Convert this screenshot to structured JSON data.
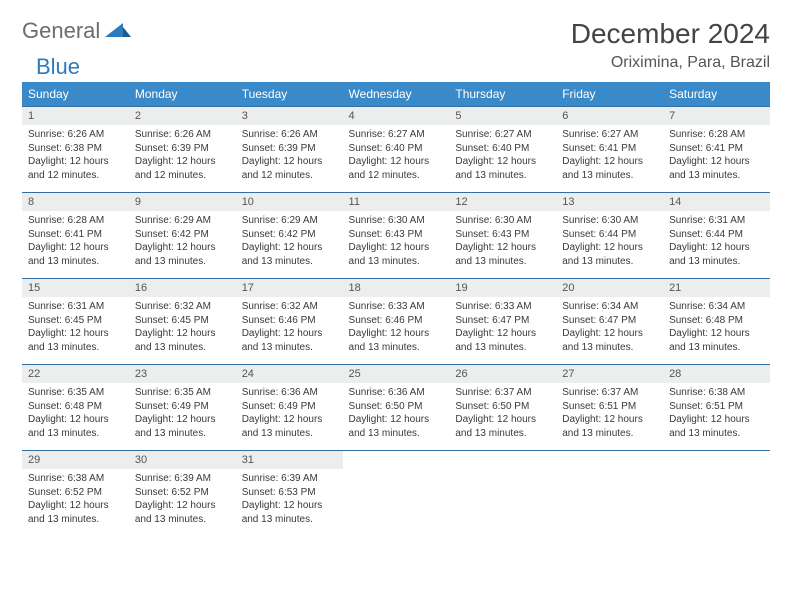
{
  "logo": {
    "part1": "General",
    "part2": "Blue"
  },
  "title": "December 2024",
  "location": "Oriximina, Para, Brazil",
  "colors": {
    "header_bg": "#3a8ac9",
    "header_text": "#ffffff",
    "daynum_bg": "#eceded",
    "row_divider": "#2f6fa3",
    "logo_gray": "#6d6d6d",
    "logo_blue": "#2b7bbf",
    "text": "#3a3a3a",
    "background": "#ffffff"
  },
  "weekdays": [
    "Sunday",
    "Monday",
    "Tuesday",
    "Wednesday",
    "Thursday",
    "Friday",
    "Saturday"
  ],
  "days": [
    {
      "n": 1,
      "sunrise": "6:26 AM",
      "sunset": "6:38 PM",
      "daylight": "12 hours and 12 minutes."
    },
    {
      "n": 2,
      "sunrise": "6:26 AM",
      "sunset": "6:39 PM",
      "daylight": "12 hours and 12 minutes."
    },
    {
      "n": 3,
      "sunrise": "6:26 AM",
      "sunset": "6:39 PM",
      "daylight": "12 hours and 12 minutes."
    },
    {
      "n": 4,
      "sunrise": "6:27 AM",
      "sunset": "6:40 PM",
      "daylight": "12 hours and 12 minutes."
    },
    {
      "n": 5,
      "sunrise": "6:27 AM",
      "sunset": "6:40 PM",
      "daylight": "12 hours and 13 minutes."
    },
    {
      "n": 6,
      "sunrise": "6:27 AM",
      "sunset": "6:41 PM",
      "daylight": "12 hours and 13 minutes."
    },
    {
      "n": 7,
      "sunrise": "6:28 AM",
      "sunset": "6:41 PM",
      "daylight": "12 hours and 13 minutes."
    },
    {
      "n": 8,
      "sunrise": "6:28 AM",
      "sunset": "6:41 PM",
      "daylight": "12 hours and 13 minutes."
    },
    {
      "n": 9,
      "sunrise": "6:29 AM",
      "sunset": "6:42 PM",
      "daylight": "12 hours and 13 minutes."
    },
    {
      "n": 10,
      "sunrise": "6:29 AM",
      "sunset": "6:42 PM",
      "daylight": "12 hours and 13 minutes."
    },
    {
      "n": 11,
      "sunrise": "6:30 AM",
      "sunset": "6:43 PM",
      "daylight": "12 hours and 13 minutes."
    },
    {
      "n": 12,
      "sunrise": "6:30 AM",
      "sunset": "6:43 PM",
      "daylight": "12 hours and 13 minutes."
    },
    {
      "n": 13,
      "sunrise": "6:30 AM",
      "sunset": "6:44 PM",
      "daylight": "12 hours and 13 minutes."
    },
    {
      "n": 14,
      "sunrise": "6:31 AM",
      "sunset": "6:44 PM",
      "daylight": "12 hours and 13 minutes."
    },
    {
      "n": 15,
      "sunrise": "6:31 AM",
      "sunset": "6:45 PM",
      "daylight": "12 hours and 13 minutes."
    },
    {
      "n": 16,
      "sunrise": "6:32 AM",
      "sunset": "6:45 PM",
      "daylight": "12 hours and 13 minutes."
    },
    {
      "n": 17,
      "sunrise": "6:32 AM",
      "sunset": "6:46 PM",
      "daylight": "12 hours and 13 minutes."
    },
    {
      "n": 18,
      "sunrise": "6:33 AM",
      "sunset": "6:46 PM",
      "daylight": "12 hours and 13 minutes."
    },
    {
      "n": 19,
      "sunrise": "6:33 AM",
      "sunset": "6:47 PM",
      "daylight": "12 hours and 13 minutes."
    },
    {
      "n": 20,
      "sunrise": "6:34 AM",
      "sunset": "6:47 PM",
      "daylight": "12 hours and 13 minutes."
    },
    {
      "n": 21,
      "sunrise": "6:34 AM",
      "sunset": "6:48 PM",
      "daylight": "12 hours and 13 minutes."
    },
    {
      "n": 22,
      "sunrise": "6:35 AM",
      "sunset": "6:48 PM",
      "daylight": "12 hours and 13 minutes."
    },
    {
      "n": 23,
      "sunrise": "6:35 AM",
      "sunset": "6:49 PM",
      "daylight": "12 hours and 13 minutes."
    },
    {
      "n": 24,
      "sunrise": "6:36 AM",
      "sunset": "6:49 PM",
      "daylight": "12 hours and 13 minutes."
    },
    {
      "n": 25,
      "sunrise": "6:36 AM",
      "sunset": "6:50 PM",
      "daylight": "12 hours and 13 minutes."
    },
    {
      "n": 26,
      "sunrise": "6:37 AM",
      "sunset": "6:50 PM",
      "daylight": "12 hours and 13 minutes."
    },
    {
      "n": 27,
      "sunrise": "6:37 AM",
      "sunset": "6:51 PM",
      "daylight": "12 hours and 13 minutes."
    },
    {
      "n": 28,
      "sunrise": "6:38 AM",
      "sunset": "6:51 PM",
      "daylight": "12 hours and 13 minutes."
    },
    {
      "n": 29,
      "sunrise": "6:38 AM",
      "sunset": "6:52 PM",
      "daylight": "12 hours and 13 minutes."
    },
    {
      "n": 30,
      "sunrise": "6:39 AM",
      "sunset": "6:52 PM",
      "daylight": "12 hours and 13 minutes."
    },
    {
      "n": 31,
      "sunrise": "6:39 AM",
      "sunset": "6:53 PM",
      "daylight": "12 hours and 13 minutes."
    }
  ],
  "labels": {
    "sunrise": "Sunrise:",
    "sunset": "Sunset:",
    "daylight": "Daylight:"
  },
  "layout": {
    "start_weekday": 0,
    "total_days": 31,
    "columns": 7
  }
}
